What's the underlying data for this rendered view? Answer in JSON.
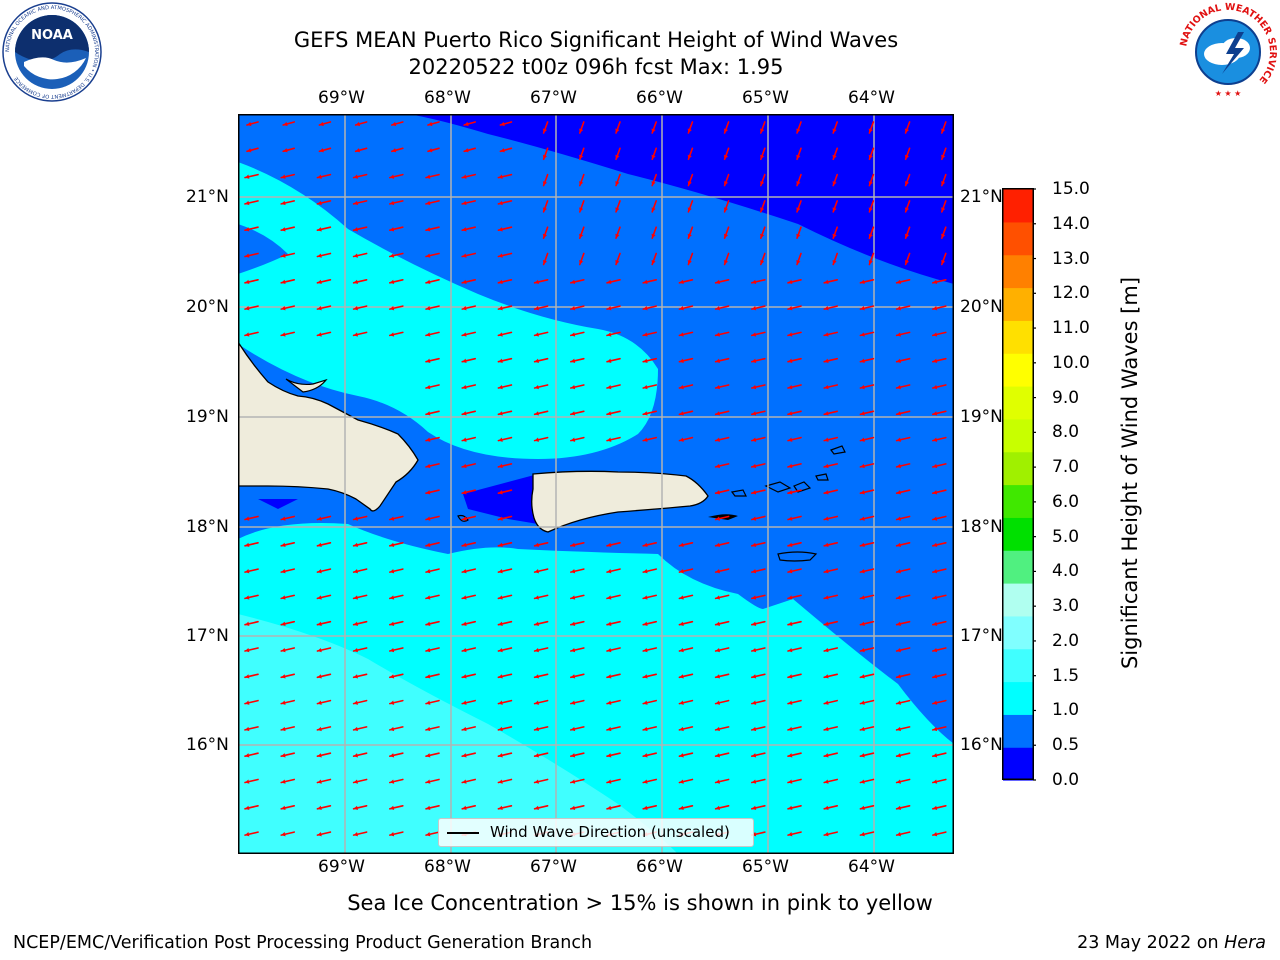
{
  "header": {
    "title_line1": "GEFS MEAN Puerto Rico Significant Height of Wind Waves",
    "title_line2": "20220522 t00z 096h fcst   Max: 1.95"
  },
  "logos": {
    "noaa_text": "NOAA",
    "noaa_ring_text": "NATIONAL OCEANIC AND ATMOSPHERIC ADMINISTRATION • U.S. DEPARTMENT OF COMMERCE",
    "nws_ring_text": "NATIONAL WEATHER SERVICE"
  },
  "map": {
    "lon_ticks": [
      "69°W",
      "68°W",
      "67°W",
      "66°W",
      "65°W",
      "64°W"
    ],
    "lat_ticks": [
      "21°N",
      "20°N",
      "19°N",
      "18°N",
      "17°N",
      "16°N"
    ],
    "legend_label": "Wind Wave Direction (unscaled)",
    "arrow_color": "#ff0000",
    "land_color": "#efecdc"
  },
  "colorbar": {
    "title": "Significant Height of Wind Waves [m]",
    "ticks": [
      "15.0",
      "14.0",
      "13.0",
      "12.0",
      "11.0",
      "10.0",
      "9.0",
      "8.0",
      "7.0",
      "6.0",
      "5.0",
      "4.0",
      "3.0",
      "2.0",
      "1.5",
      "1.0",
      "0.5",
      "0.0"
    ],
    "levels": [
      0.0,
      0.5,
      1.0,
      1.5,
      2.0,
      2.5,
      3.0,
      4.0,
      5.0,
      6.0,
      7.0,
      8.0,
      9.0,
      10.0,
      11.0,
      12.0,
      13.0,
      14.0,
      15.0
    ],
    "colors": [
      "#0000ff",
      "#0070ff",
      "#00ffff",
      "#40ffff",
      "#80ffff",
      "#b0fff0",
      "#50f080",
      "#00e000",
      "#40e800",
      "#a0f000",
      "#c8ff00",
      "#e0ff00",
      "#ffff00",
      "#ffe000",
      "#ffb000",
      "#ff8000",
      "#ff5000",
      "#ff2000"
    ]
  },
  "captions": {
    "sea_ice": "Sea Ice Concentration > 15% is shown in pink to yellow",
    "branch": "NCEP/EMC/Verification Post Processing Product Generation Branch",
    "date_prefix": "23 May 2022 on ",
    "machine": "Hera"
  }
}
